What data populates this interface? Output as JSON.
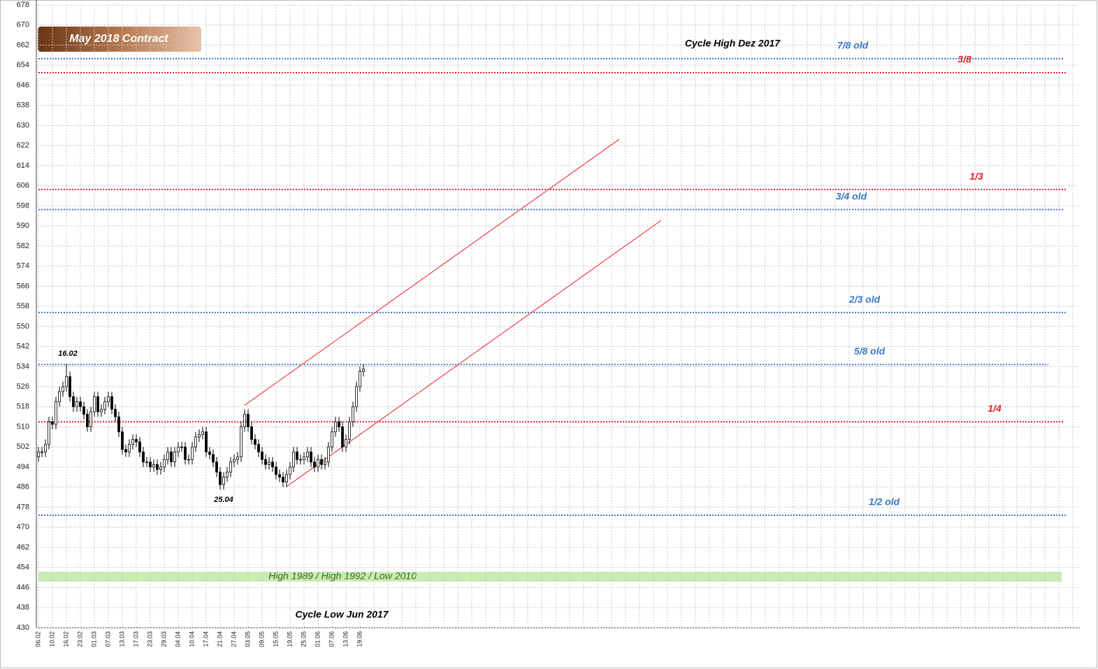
{
  "chart_data": {
    "type": "candlestick",
    "title": "May 2018 Contract",
    "categories": [
      "06.02",
      null,
      null,
      null,
      "10.02",
      null,
      null,
      null,
      "16.02",
      null,
      null,
      null,
      "23.02",
      null,
      null,
      null,
      "01.03",
      null,
      null,
      null,
      "07.03",
      null,
      null,
      null,
      "13.03",
      null,
      null,
      null,
      "17.03",
      null,
      null,
      null,
      "23.03",
      null,
      null,
      null,
      "29.03",
      null,
      null,
      null,
      "04.04",
      null,
      null,
      null,
      "10.04",
      null,
      null,
      null,
      "17.04",
      null,
      null,
      null,
      "21.04",
      null,
      null,
      null,
      "27.04",
      null,
      null,
      null,
      "03.05",
      null,
      null,
      null,
      "09.05",
      null,
      null,
      null,
      "15.05",
      null,
      null,
      null,
      "19.05",
      null,
      null,
      null,
      "25.05",
      null,
      null,
      null,
      "01.06",
      null,
      null,
      null,
      "07.06",
      null,
      null,
      null,
      "13.06",
      null,
      null,
      null,
      "19.06",
      null
    ],
    "open": [
      498,
      500,
      500,
      503,
      512,
      511,
      520,
      524,
      526,
      530,
      522,
      518,
      520,
      518,
      515,
      510,
      516,
      522,
      516,
      517,
      520,
      522,
      517,
      514,
      508,
      501,
      500,
      503,
      505,
      504,
      500,
      496,
      496,
      494,
      495,
      493,
      494,
      497,
      500,
      496,
      500,
      502,
      502,
      497,
      497,
      502,
      506,
      507,
      508,
      500,
      499,
      496,
      492,
      487,
      490,
      492,
      496,
      497,
      498,
      510,
      515,
      510,
      505,
      503,
      500,
      497,
      495,
      496,
      494,
      491,
      490,
      488,
      491,
      494,
      500,
      497,
      497,
      498,
      500,
      496,
      494,
      497,
      495,
      496,
      502,
      508,
      512,
      510,
      502,
      505,
      512,
      518,
      526,
      532
    ],
    "high": [
      502,
      502,
      505,
      514,
      514,
      522,
      526,
      528,
      535,
      532,
      524,
      522,
      522,
      520,
      517,
      518,
      524,
      524,
      519,
      522,
      524,
      524,
      519,
      516,
      510,
      503,
      505,
      507,
      507,
      506,
      502,
      498,
      498,
      497,
      497,
      496,
      499,
      502,
      502,
      502,
      504,
      504,
      504,
      499,
      504,
      508,
      509,
      510,
      510,
      502,
      501,
      498,
      494,
      492,
      494,
      498,
      499,
      500,
      512,
      517,
      517,
      512,
      507,
      505,
      502,
      499,
      498,
      498,
      496,
      493,
      492,
      493,
      496,
      502,
      502,
      499,
      500,
      502,
      502,
      498,
      499,
      499,
      498,
      504,
      510,
      514,
      514,
      512,
      507,
      514,
      520,
      528,
      534,
      535
    ],
    "low": [
      496,
      498,
      498,
      501,
      509,
      509,
      518,
      522,
      524,
      520,
      516,
      516,
      516,
      513,
      508,
      508,
      514,
      514,
      514,
      515,
      518,
      515,
      512,
      506,
      499,
      498,
      498,
      501,
      502,
      498,
      494,
      494,
      492,
      492,
      491,
      491,
      492,
      495,
      494,
      494,
      498,
      500,
      495,
      495,
      495,
      500,
      504,
      505,
      498,
      497,
      494,
      490,
      485,
      485,
      488,
      490,
      494,
      495,
      496,
      508,
      508,
      503,
      501,
      498,
      495,
      493,
      493,
      492,
      489,
      488,
      486,
      486,
      489,
      492,
      495,
      495,
      495,
      496,
      494,
      492,
      492,
      493,
      493,
      494,
      500,
      506,
      508,
      500,
      500,
      503,
      510,
      516,
      524,
      530
    ],
    "close": [
      500,
      500,
      503,
      512,
      511,
      520,
      524,
      526,
      530,
      522,
      518,
      520,
      518,
      515,
      510,
      516,
      522,
      516,
      517,
      520,
      522,
      517,
      514,
      508,
      501,
      500,
      503,
      505,
      504,
      500,
      496,
      496,
      494,
      495,
      493,
      494,
      497,
      500,
      496,
      500,
      502,
      502,
      497,
      497,
      502,
      506,
      507,
      508,
      500,
      499,
      496,
      492,
      487,
      490,
      492,
      496,
      497,
      498,
      510,
      515,
      510,
      505,
      503,
      500,
      497,
      495,
      496,
      494,
      491,
      490,
      488,
      491,
      494,
      500,
      497,
      497,
      498,
      500,
      496,
      494,
      497,
      495,
      496,
      502,
      508,
      512,
      510,
      502,
      505,
      512,
      518,
      526,
      532,
      533
    ],
    "xlim": [
      -0.4,
      298
    ],
    "ylim": [
      430,
      678
    ],
    "yticks": [
      430,
      438,
      446,
      454,
      462,
      470,
      478,
      486,
      494,
      502,
      510,
      518,
      526,
      534,
      542,
      550,
      558,
      566,
      574,
      582,
      590,
      598,
      606,
      614,
      622,
      630,
      638,
      646,
      654,
      662,
      670,
      678
    ],
    "grid": true,
    "levels": [
      {
        "label": "7/8 old",
        "value": 656.6,
        "color": "#3a78c0"
      },
      {
        "label": "3/8",
        "value": 651,
        "color": "#e8202a"
      },
      {
        "label": "1/3",
        "value": 604.5,
        "color": "#e8202a"
      },
      {
        "label": "3/4 old",
        "value": 596.5,
        "color": "#3a78c0"
      },
      {
        "label": "2/3 old",
        "value": 555.5,
        "color": "#3a78c0"
      },
      {
        "label": "5/8 old",
        "value": 534.8,
        "color": "#3a78c0"
      },
      {
        "label": "1/4",
        "value": 512,
        "color": "#e8202a"
      },
      {
        "label": "1/2 old",
        "value": 474.8,
        "color": "#3a78c0"
      }
    ],
    "band": {
      "label": "High 1989 / High 1992 / Low 2010",
      "from": 448.4,
      "to": 452.3,
      "color": "#c9ecb0"
    },
    "trend_lines": [
      {
        "x": [
          59,
          166.2
        ],
        "y": [
          518.6,
          624.5
        ],
        "color": "#e8202a"
      },
      {
        "x": [
          71,
          178.2
        ],
        "y": [
          486.2,
          592.2
        ],
        "color": "#e8202a"
      }
    ],
    "annotations": [
      "Cycle High Dez 2017",
      "Cycle Low Jun 2017",
      "16.02",
      "25.04"
    ]
  }
}
